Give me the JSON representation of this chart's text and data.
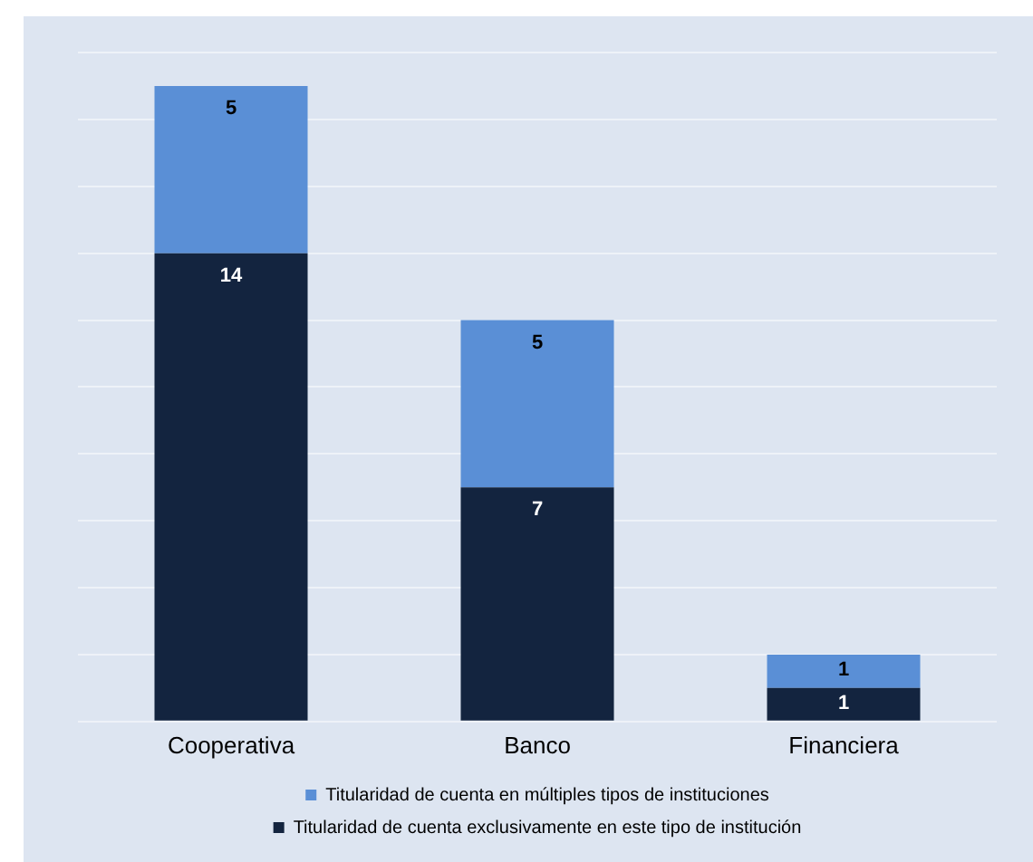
{
  "chart_data": {
    "type": "bar",
    "stacked": true,
    "categories": [
      "Cooperativa",
      "Banco",
      "Financiera"
    ],
    "series": [
      {
        "name": "Titularidad de cuenta exclusivamente en este tipo de institución",
        "color": "#13243f",
        "values": [
          14,
          7,
          1
        ]
      },
      {
        "name": "Titularidad de cuenta en múltiples tipos de instituciones",
        "color": "#5a8fd6",
        "values": [
          5,
          5,
          1
        ]
      }
    ],
    "data_labels": true,
    "grid": "y",
    "legend": "bottom",
    "tick_labels": "x"
  }
}
